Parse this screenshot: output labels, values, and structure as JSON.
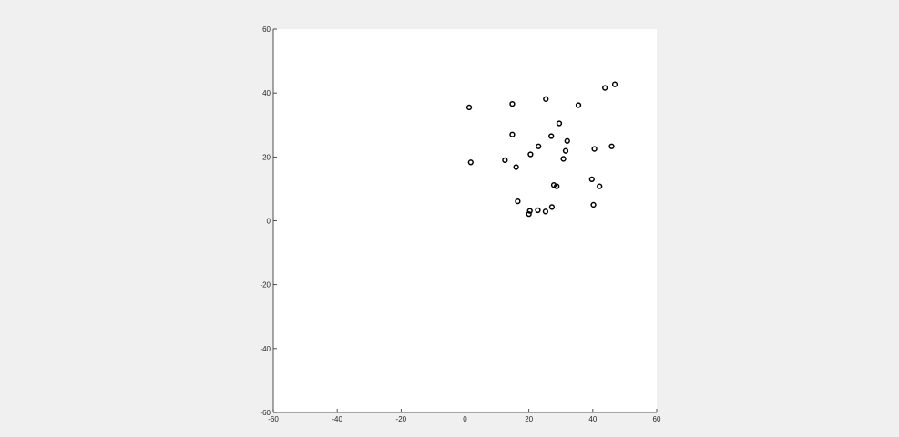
{
  "figure": {
    "background": "#f0f0f0",
    "axes_background": "#ffffff",
    "axis_color": "#262626",
    "marker_color": "#000000"
  },
  "chart_data": {
    "type": "scatter",
    "title": "",
    "xlabel": "",
    "ylabel": "",
    "xlim": [
      -60,
      60
    ],
    "ylim": [
      -60,
      60
    ],
    "grid": false,
    "box": false,
    "marker": "circle-open",
    "x_ticks": [
      -60,
      -40,
      -20,
      0,
      20,
      40,
      60
    ],
    "y_ticks": [
      -60,
      -40,
      -20,
      0,
      20,
      40,
      60
    ],
    "x_tick_labels": [
      "-60",
      "-40",
      "-20",
      "0",
      "20",
      "40",
      "60"
    ],
    "y_tick_labels": [
      "-60",
      "-40",
      "-20",
      "0",
      "20",
      "40",
      "60"
    ],
    "series": [
      {
        "x": [
          1.3,
          14.8,
          25.3,
          43.8,
          46.9,
          35.5,
          29.5,
          14.8,
          27.0,
          32.0,
          23.0,
          40.5,
          45.9,
          31.5,
          20.5,
          1.8,
          12.5,
          30.8,
          16.0,
          39.7,
          27.8,
          28.7,
          42.1,
          16.5,
          40.2,
          27.2,
          22.8,
          20.3,
          25.2,
          20.0
        ],
        "y": [
          35.5,
          36.6,
          38.1,
          41.6,
          42.7,
          36.2,
          30.5,
          27.0,
          26.5,
          25.0,
          23.3,
          22.5,
          23.3,
          21.9,
          20.8,
          18.3,
          19.0,
          19.4,
          16.8,
          13.0,
          11.2,
          10.8,
          10.8,
          6.1,
          5.0,
          4.3,
          3.3,
          3.1,
          2.9,
          2.1
        ]
      }
    ]
  }
}
